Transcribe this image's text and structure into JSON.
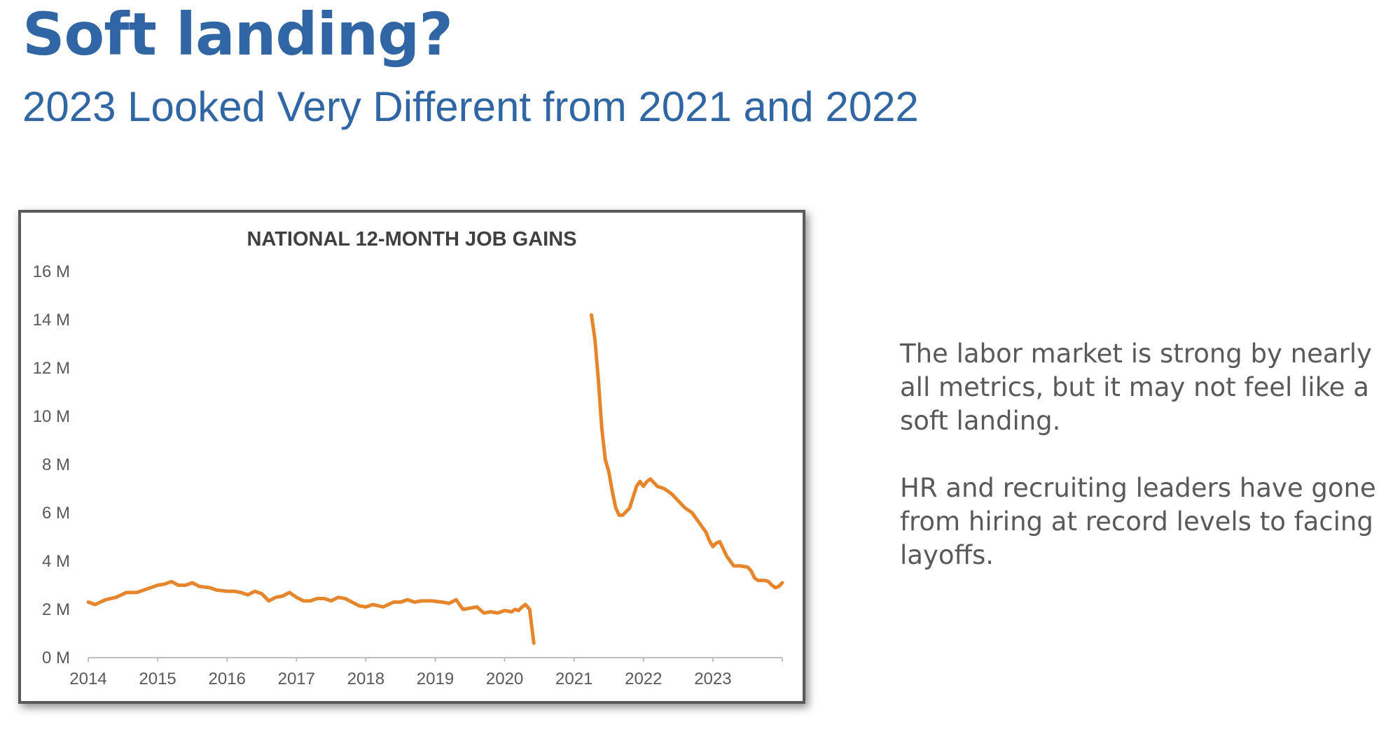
{
  "slide": {
    "title": "Soft landing?",
    "subtitle": "2023 Looked Very Different from 2021 and 2022",
    "paragraph_1": "The labor market is strong by nearly all metrics, but it may not feel like a soft landing.",
    "paragraph_2": "HR and recruiting leaders have gone from hiring at record levels to facing layoffs."
  },
  "colors": {
    "title": "#2F66A3",
    "line": "#E6862C",
    "body_text": "#595959"
  },
  "chart_data": {
    "type": "line",
    "title": "NATIONAL 12-MONTH JOB GAINS",
    "xlabel": "",
    "ylabel": "",
    "x_range": [
      2014.0,
      2024.0
    ],
    "ylim": [
      0,
      16
    ],
    "y_unit_suffix": " M",
    "y_ticks": [
      0,
      2,
      4,
      6,
      8,
      10,
      12,
      14,
      16
    ],
    "y_tick_labels": [
      "0 M",
      "2 M",
      "4 M",
      "6 M",
      "8 M",
      "10 M",
      "12 M",
      "14 M",
      "16 M"
    ],
    "x_ticks": [
      2014,
      2015,
      2016,
      2017,
      2018,
      2019,
      2020,
      2021,
      2022,
      2023
    ],
    "x_tick_labels": [
      "2014",
      "2015",
      "2016",
      "2017",
      "2018",
      "2019",
      "2020",
      "2021",
      "2022",
      "2023"
    ],
    "grid": false,
    "legend": "none",
    "series": [
      {
        "segments": [
          [
            [
              2014.0,
              2.3
            ],
            [
              2014.1,
              2.2
            ],
            [
              2014.25,
              2.4
            ],
            [
              2014.4,
              2.5
            ],
            [
              2014.55,
              2.7
            ],
            [
              2014.7,
              2.7
            ],
            [
              2014.85,
              2.85
            ],
            [
              2015.0,
              3.0
            ],
            [
              2015.1,
              3.05
            ],
            [
              2015.2,
              3.15
            ],
            [
              2015.3,
              3.0
            ],
            [
              2015.4,
              3.0
            ],
            [
              2015.5,
              3.1
            ],
            [
              2015.6,
              2.95
            ],
            [
              2015.75,
              2.9
            ],
            [
              2015.85,
              2.8
            ],
            [
              2016.0,
              2.75
            ],
            [
              2016.1,
              2.75
            ],
            [
              2016.2,
              2.7
            ],
            [
              2016.3,
              2.6
            ],
            [
              2016.4,
              2.75
            ],
            [
              2016.5,
              2.65
            ],
            [
              2016.6,
              2.35
            ],
            [
              2016.7,
              2.5
            ],
            [
              2016.8,
              2.55
            ],
            [
              2016.9,
              2.7
            ],
            [
              2017.0,
              2.5
            ],
            [
              2017.1,
              2.35
            ],
            [
              2017.2,
              2.35
            ],
            [
              2017.3,
              2.45
            ],
            [
              2017.4,
              2.45
            ],
            [
              2017.5,
              2.35
            ],
            [
              2017.6,
              2.5
            ],
            [
              2017.7,
              2.45
            ],
            [
              2017.8,
              2.3
            ],
            [
              2017.9,
              2.15
            ],
            [
              2018.0,
              2.1
            ],
            [
              2018.1,
              2.2
            ],
            [
              2018.25,
              2.1
            ],
            [
              2018.4,
              2.3
            ],
            [
              2018.5,
              2.3
            ],
            [
              2018.6,
              2.4
            ],
            [
              2018.7,
              2.3
            ],
            [
              2018.8,
              2.35
            ],
            [
              2018.95,
              2.35
            ],
            [
              2019.1,
              2.3
            ],
            [
              2019.2,
              2.25
            ],
            [
              2019.3,
              2.4
            ],
            [
              2019.4,
              2.0
            ],
            [
              2019.5,
              2.05
            ],
            [
              2019.6,
              2.1
            ],
            [
              2019.7,
              1.85
            ],
            [
              2019.8,
              1.9
            ],
            [
              2019.9,
              1.85
            ],
            [
              2020.0,
              1.95
            ],
            [
              2020.1,
              1.9
            ],
            [
              2020.15,
              2.0
            ],
            [
              2020.2,
              1.95
            ],
            [
              2020.25,
              2.1
            ],
            [
              2020.3,
              2.2
            ],
            [
              2020.36,
              2.0
            ],
            [
              2020.42,
              0.6
            ]
          ],
          [
            [
              2021.25,
              14.2
            ],
            [
              2021.3,
              13.2
            ],
            [
              2021.35,
              11.5
            ],
            [
              2021.4,
              9.5
            ],
            [
              2021.45,
              8.2
            ],
            [
              2021.5,
              7.7
            ],
            [
              2021.55,
              6.9
            ],
            [
              2021.6,
              6.2
            ],
            [
              2021.65,
              5.9
            ],
            [
              2021.7,
              5.9
            ],
            [
              2021.8,
              6.2
            ],
            [
              2021.9,
              7.1
            ],
            [
              2021.95,
              7.3
            ],
            [
              2022.0,
              7.1
            ],
            [
              2022.05,
              7.3
            ],
            [
              2022.1,
              7.4
            ],
            [
              2022.2,
              7.1
            ],
            [
              2022.3,
              7.0
            ],
            [
              2022.4,
              6.8
            ],
            [
              2022.5,
              6.5
            ],
            [
              2022.6,
              6.2
            ],
            [
              2022.7,
              6.0
            ],
            [
              2022.8,
              5.6
            ],
            [
              2022.9,
              5.2
            ],
            [
              2022.95,
              4.85
            ],
            [
              2023.0,
              4.6
            ],
            [
              2023.05,
              4.75
            ],
            [
              2023.1,
              4.8
            ],
            [
              2023.15,
              4.5
            ],
            [
              2023.2,
              4.2
            ],
            [
              2023.3,
              3.8
            ],
            [
              2023.4,
              3.8
            ],
            [
              2023.5,
              3.75
            ],
            [
              2023.55,
              3.6
            ],
            [
              2023.6,
              3.3
            ],
            [
              2023.65,
              3.2
            ],
            [
              2023.75,
              3.2
            ],
            [
              2023.8,
              3.15
            ],
            [
              2023.85,
              3.0
            ],
            [
              2023.9,
              2.9
            ],
            [
              2023.95,
              2.95
            ],
            [
              2024.0,
              3.1
            ]
          ]
        ]
      }
    ]
  }
}
